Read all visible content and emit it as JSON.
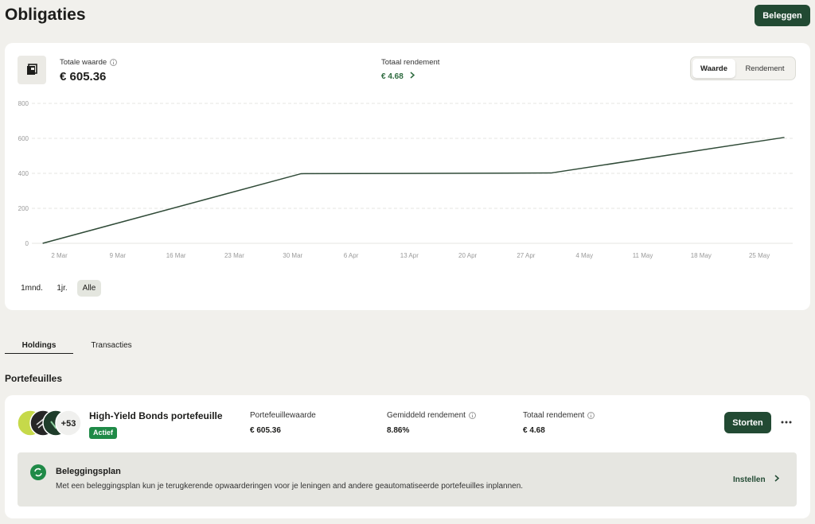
{
  "header": {
    "title": "Obligaties",
    "button": "Beleggen"
  },
  "summary": {
    "total_value_label": "Totale waarde",
    "total_value": "€ 605.36",
    "total_return_label": "Totaal rendement",
    "total_return": "€ 4.68",
    "toggle": [
      "Waarde",
      "Rendement"
    ],
    "toggle_active": 0
  },
  "chart_data": {
    "type": "line",
    "x": [
      -2,
      29,
      59,
      87
    ],
    "values": [
      0,
      398,
      402,
      605.36
    ],
    "color": "#2f4a37",
    "xlim": [
      -3.3,
      88
    ],
    "xticks": [
      {
        "value": 0,
        "label": "2 Mar"
      },
      {
        "value": 7,
        "label": "9 Mar"
      },
      {
        "value": 14,
        "label": "16 Mar"
      },
      {
        "value": 21,
        "label": "23 Mar"
      },
      {
        "value": 28,
        "label": "30 Mar"
      },
      {
        "value": 35,
        "label": "6 Apr"
      },
      {
        "value": 42,
        "label": "13 Apr"
      },
      {
        "value": 49,
        "label": "20 Apr"
      },
      {
        "value": 56,
        "label": "27 Apr"
      },
      {
        "value": 63,
        "label": "4 May"
      },
      {
        "value": 70,
        "label": "11 May"
      },
      {
        "value": 77,
        "label": "18 May"
      },
      {
        "value": 84,
        "label": "25 May"
      }
    ],
    "ylim": [
      0,
      800
    ],
    "yticks": [
      0,
      200,
      400,
      600,
      800
    ],
    "grid": true
  },
  "periods": {
    "options": [
      "1mnd.",
      "1jr.",
      "Alle"
    ],
    "active": 2
  },
  "tabs": {
    "options": [
      "Holdings",
      "Transacties"
    ],
    "active": 0
  },
  "section_title": "Portefeuilles",
  "portfolio": {
    "more_count": "+53",
    "name": "High-Yield Bonds portefeuille",
    "status": "Actief",
    "stats": [
      {
        "label": "Portefeuillewaarde",
        "value": "€ 605.36"
      },
      {
        "label": "Gemiddeld rendement",
        "value": "8.86%"
      },
      {
        "label": "Totaal rendement",
        "value": "€ 4.68"
      }
    ],
    "button": "Storten",
    "plan": {
      "title": "Beleggingsplan",
      "text": "Met een beleggingsplan kun je terugkerende opwaarderingen voor je leningen and andere geautomatiseerde portefeuilles inplannen.",
      "action": "Instellen"
    }
  }
}
